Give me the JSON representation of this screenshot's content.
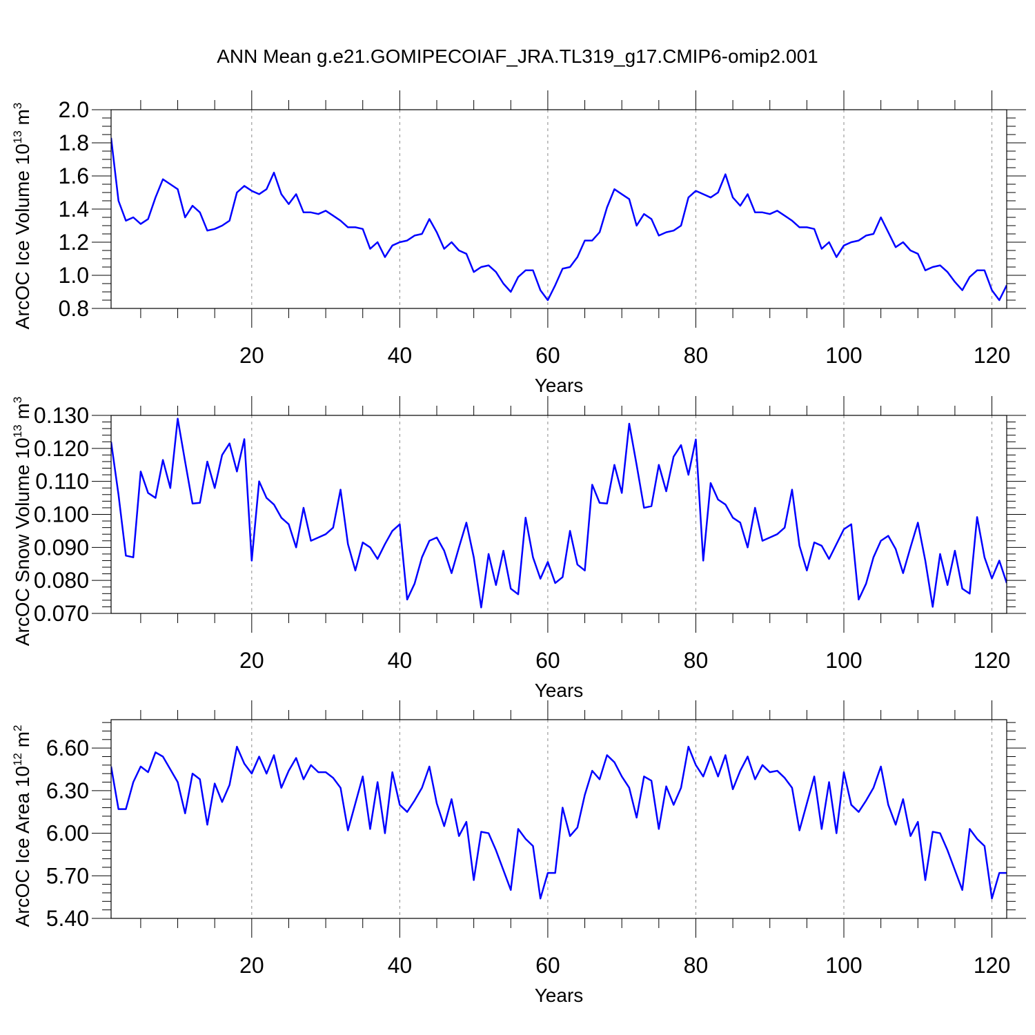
{
  "title": "ANN Mean g.e21.GOMIPECOIAF_JRA.TL319_g17.CMIP6-omip2.001",
  "chart_data": [
    {
      "type": "line",
      "ylabel": "ArcOC Ice Volume 10",
      "ylabel_exp": "13",
      "ylabel_unit": " m",
      "ylabel_unit_exp": "3",
      "xlabel": "Years",
      "xlim": [
        1,
        122
      ],
      "ylim": [
        0.8,
        2.0
      ],
      "yticks": [
        0.8,
        1.0,
        1.2,
        1.4,
        1.6,
        1.8,
        2.0
      ],
      "ytick_labels": [
        "0.8",
        "1.0",
        "1.2",
        "1.4",
        "1.6",
        "1.8",
        "2.0"
      ],
      "yminor_step": 0.05,
      "xticks": [
        20,
        40,
        60,
        80,
        100,
        120
      ],
      "xtick_labels": [
        "20",
        "40",
        "60",
        "80",
        "100",
        "120"
      ],
      "series": [
        {
          "name": "ArcOC Ice Volume",
          "color": "#0000ff",
          "values": [
            1.83,
            1.45,
            1.33,
            1.35,
            1.31,
            1.34,
            1.47,
            1.58,
            1.55,
            1.52,
            1.35,
            1.42,
            1.38,
            1.27,
            1.28,
            1.3,
            1.33,
            1.5,
            1.54,
            1.51,
            1.49,
            1.52,
            1.62,
            1.49,
            1.43,
            1.49,
            1.38,
            1.38,
            1.37,
            1.39,
            1.36,
            1.33,
            1.29,
            1.29,
            1.28,
            1.16,
            1.2,
            1.11,
            1.18,
            1.2,
            1.21,
            1.24,
            1.25,
            1.34,
            1.26,
            1.16,
            1.2,
            1.15,
            1.13,
            1.02,
            1.05,
            1.06,
            1.02,
            0.95,
            0.9,
            0.99,
            1.03,
            1.03,
            0.91,
            0.85,
            0.94,
            1.04,
            1.05,
            1.11,
            1.21,
            1.21,
            1.26,
            1.41,
            1.52,
            1.49,
            1.46,
            1.3,
            1.37,
            1.34,
            1.24,
            1.26,
            1.27,
            1.3,
            1.47,
            1.51,
            1.49,
            1.47,
            1.5,
            1.61,
            1.47,
            1.42,
            1.49,
            1.38,
            1.38,
            1.37,
            1.39,
            1.36,
            1.33,
            1.29,
            1.29,
            1.28,
            1.16,
            1.2,
            1.11,
            1.18,
            1.2,
            1.21,
            1.24,
            1.25,
            1.35,
            1.26,
            1.17,
            1.2,
            1.15,
            1.13,
            1.03,
            1.05,
            1.06,
            1.02,
            0.96,
            0.91,
            0.99,
            1.03,
            1.03,
            0.91,
            0.85,
            0.94
          ]
        }
      ]
    },
    {
      "type": "line",
      "ylabel": "ArcOC Snow Volume 10",
      "ylabel_exp": "13",
      "ylabel_unit": " m",
      "ylabel_unit_exp": "3",
      "xlabel": "Years",
      "xlim": [
        1,
        122
      ],
      "ylim": [
        0.07,
        0.13
      ],
      "yticks": [
        0.07,
        0.08,
        0.09,
        0.1,
        0.11,
        0.12,
        0.13
      ],
      "ytick_labels": [
        "0.070",
        "0.080",
        "0.090",
        "0.100",
        "0.110",
        "0.120",
        "0.130"
      ],
      "yminor_step": 0.002,
      "xticks": [
        20,
        40,
        60,
        80,
        100,
        120
      ],
      "xtick_labels": [
        "20",
        "40",
        "60",
        "80",
        "100",
        "120"
      ],
      "series": [
        {
          "name": "ArcOC Snow Volume",
          "color": "#0000ff",
          "values": [
            0.122,
            0.106,
            0.0875,
            0.087,
            0.113,
            0.1065,
            0.105,
            0.1165,
            0.108,
            0.129,
            0.116,
            0.1033,
            0.1035,
            0.116,
            0.108,
            0.118,
            0.1215,
            0.113,
            0.1228,
            0.086,
            0.11,
            0.105,
            0.103,
            0.099,
            0.097,
            0.09,
            0.102,
            0.092,
            0.093,
            0.094,
            0.096,
            0.1075,
            0.091,
            0.083,
            0.0915,
            0.09,
            0.0865,
            0.091,
            0.095,
            0.097,
            0.0742,
            0.079,
            0.087,
            0.092,
            0.093,
            0.089,
            0.0822,
            0.09,
            0.0975,
            0.087,
            0.0718,
            0.088,
            0.0786,
            0.089,
            0.0775,
            0.0758,
            0.099,
            0.087,
            0.0805,
            0.0856,
            0.0792,
            0.081,
            0.095,
            0.0848,
            0.083,
            0.109,
            0.1035,
            0.1033,
            0.115,
            0.1065,
            0.1275,
            0.115,
            0.102,
            0.1025,
            0.115,
            0.107,
            0.1175,
            0.121,
            0.112,
            0.1227,
            0.086,
            0.1095,
            0.1045,
            0.103,
            0.099,
            0.0975,
            0.09,
            0.102,
            0.092,
            0.093,
            0.094,
            0.096,
            0.1075,
            0.0905,
            0.083,
            0.0915,
            0.0905,
            0.0865,
            0.091,
            0.0955,
            0.097,
            0.0742,
            0.079,
            0.087,
            0.092,
            0.0935,
            0.0895,
            0.0822,
            0.09,
            0.0975,
            0.086,
            0.072,
            0.088,
            0.0786,
            0.089,
            0.0775,
            0.076,
            0.0992,
            0.087,
            0.0806,
            0.086,
            0.0792
          ]
        }
      ]
    },
    {
      "type": "line",
      "ylabel": "ArcOC Ice Area 10",
      "ylabel_exp": "12",
      "ylabel_unit": " m",
      "ylabel_unit_exp": "2",
      "xlabel": "Years",
      "xlim": [
        1,
        122
      ],
      "ylim": [
        5.4,
        6.8
      ],
      "yticks": [
        5.4,
        5.7,
        6.0,
        6.3,
        6.6
      ],
      "ytick_labels": [
        "5.40",
        "5.70",
        "6.00",
        "6.30",
        "6.60"
      ],
      "yminor_step": 0.06,
      "xticks": [
        20,
        40,
        60,
        80,
        100,
        120
      ],
      "xtick_labels": [
        "20",
        "40",
        "60",
        "80",
        "100",
        "120"
      ],
      "series": [
        {
          "name": "ArcOC Ice Area",
          "color": "#0000ff",
          "values": [
            6.47,
            6.17,
            6.17,
            6.36,
            6.47,
            6.43,
            6.57,
            6.54,
            6.45,
            6.36,
            6.14,
            6.42,
            6.38,
            6.06,
            6.35,
            6.22,
            6.34,
            6.61,
            6.49,
            6.42,
            6.54,
            6.42,
            6.55,
            6.32,
            6.44,
            6.53,
            6.38,
            6.48,
            6.43,
            6.43,
            6.39,
            6.32,
            6.02,
            6.21,
            6.4,
            6.03,
            6.36,
            6.0,
            6.43,
            6.2,
            6.15,
            6.23,
            6.32,
            6.47,
            6.21,
            6.05,
            6.24,
            5.98,
            6.08,
            5.67,
            6.01,
            6.0,
            5.88,
            5.74,
            5.6,
            6.03,
            5.96,
            5.91,
            5.54,
            5.72,
            5.72,
            6.18,
            5.98,
            6.04,
            6.27,
            6.44,
            6.38,
            6.55,
            6.5,
            6.4,
            6.32,
            6.11,
            6.4,
            6.37,
            6.03,
            6.33,
            6.2,
            6.32,
            6.61,
            6.48,
            6.4,
            6.54,
            6.4,
            6.55,
            6.31,
            6.44,
            6.54,
            6.38,
            6.48,
            6.43,
            6.44,
            6.39,
            6.32,
            6.02,
            6.21,
            6.4,
            6.03,
            6.36,
            6.0,
            6.43,
            6.2,
            6.15,
            6.23,
            6.32,
            6.47,
            6.2,
            6.06,
            6.24,
            5.98,
            6.08,
            5.67,
            6.01,
            6.0,
            5.88,
            5.74,
            5.6,
            6.03,
            5.96,
            5.91,
            5.54,
            5.72,
            5.72
          ]
        }
      ]
    }
  ]
}
